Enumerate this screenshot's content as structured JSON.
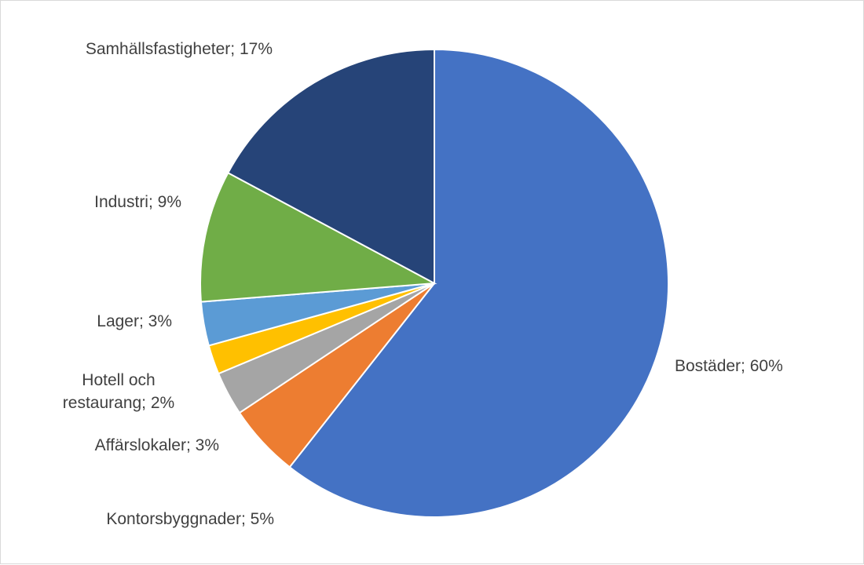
{
  "chart_data": {
    "type": "pie",
    "title": "",
    "slices": [
      {
        "name": "Bostäder",
        "value": 60,
        "label": "Bostäder; 60%",
        "color": "#4472C4"
      },
      {
        "name": "Kontorsbyggnader",
        "value": 5,
        "label": "Kontorsbyggnader; 5%",
        "color": "#ED7D31"
      },
      {
        "name": "Affärslokaler",
        "value": 3,
        "label": "Affärslokaler; 3%",
        "color": "#A5A5A5"
      },
      {
        "name": "Hotell och restaurang",
        "value": 2,
        "label": "Hotell och restaurang; 2%",
        "label_lines": [
          "Hotell och",
          "restaurang; 2%"
        ],
        "color": "#FFC000"
      },
      {
        "name": "Lager",
        "value": 3,
        "label": "Lager; 3%",
        "color": "#5B9BD5"
      },
      {
        "name": "Industri",
        "value": 9,
        "label": "Industri; 9%",
        "color": "#70AD47"
      },
      {
        "name": "Samhällsfastigheter",
        "value": 17,
        "label": "Samhällsfastigheter; 17%",
        "color": "#264478"
      }
    ],
    "start_angle_deg": 0,
    "direction": "clockwise",
    "legend": "none",
    "data_labels": "outside"
  }
}
